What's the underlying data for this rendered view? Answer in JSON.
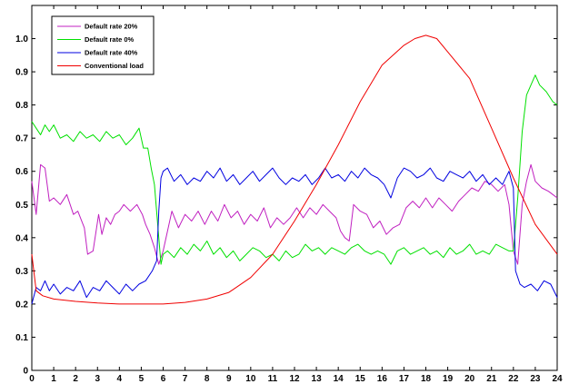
{
  "chart_data": {
    "type": "line",
    "title": "",
    "xlabel": "",
    "ylabel": "",
    "xlim": [
      0,
      24
    ],
    "ylim": [
      0,
      1.1
    ],
    "xticks": [
      0,
      1,
      2,
      3,
      4,
      5,
      6,
      7,
      8,
      9,
      10,
      11,
      12,
      13,
      14,
      15,
      16,
      17,
      18,
      19,
      20,
      21,
      22,
      23,
      24
    ],
    "yticks": [
      0,
      0.1,
      0.2,
      0.3,
      0.4,
      0.5,
      0.6,
      0.7,
      0.8,
      0.9,
      1.0
    ],
    "ytick_labels": [
      "0",
      "0.1",
      "0.2",
      "0.3",
      "0.4",
      "0.5",
      "0.6",
      "0.7",
      "0.8",
      "0.9",
      "1.0"
    ],
    "grid": false,
    "legend_position": "top-left",
    "series": [
      {
        "name": "Default rate 20%",
        "color": "#c020c0",
        "points": [
          [
            0,
            0.57
          ],
          [
            0.2,
            0.47
          ],
          [
            0.4,
            0.62
          ],
          [
            0.6,
            0.61
          ],
          [
            0.8,
            0.51
          ],
          [
            1,
            0.52
          ],
          [
            1.3,
            0.5
          ],
          [
            1.6,
            0.53
          ],
          [
            1.9,
            0.47
          ],
          [
            2.1,
            0.48
          ],
          [
            2.4,
            0.43
          ],
          [
            2.55,
            0.35
          ],
          [
            2.8,
            0.36
          ],
          [
            3.05,
            0.47
          ],
          [
            3.2,
            0.41
          ],
          [
            3.4,
            0.46
          ],
          [
            3.6,
            0.44
          ],
          [
            3.8,
            0.47
          ],
          [
            4.0,
            0.48
          ],
          [
            4.2,
            0.5
          ],
          [
            4.5,
            0.48
          ],
          [
            4.8,
            0.5
          ],
          [
            5.05,
            0.47
          ],
          [
            5.2,
            0.44
          ],
          [
            5.4,
            0.41
          ],
          [
            5.6,
            0.37
          ],
          [
            5.8,
            0.32
          ],
          [
            6.0,
            0.36
          ],
          [
            6.2,
            0.42
          ],
          [
            6.4,
            0.48
          ],
          [
            6.7,
            0.43
          ],
          [
            7.0,
            0.47
          ],
          [
            7.3,
            0.45
          ],
          [
            7.6,
            0.48
          ],
          [
            7.9,
            0.44
          ],
          [
            8.2,
            0.48
          ],
          [
            8.5,
            0.45
          ],
          [
            8.8,
            0.5
          ],
          [
            9.1,
            0.46
          ],
          [
            9.4,
            0.48
          ],
          [
            9.7,
            0.44
          ],
          [
            10.0,
            0.47
          ],
          [
            10.3,
            0.45
          ],
          [
            10.6,
            0.49
          ],
          [
            10.9,
            0.43
          ],
          [
            11.2,
            0.46
          ],
          [
            11.5,
            0.44
          ],
          [
            11.8,
            0.46
          ],
          [
            12.1,
            0.49
          ],
          [
            12.4,
            0.46
          ],
          [
            12.7,
            0.49
          ],
          [
            13.0,
            0.47
          ],
          [
            13.3,
            0.5
          ],
          [
            13.6,
            0.48
          ],
          [
            13.9,
            0.46
          ],
          [
            14.1,
            0.42
          ],
          [
            14.3,
            0.4
          ],
          [
            14.5,
            0.39
          ],
          [
            14.7,
            0.5
          ],
          [
            15.0,
            0.48
          ],
          [
            15.3,
            0.47
          ],
          [
            15.6,
            0.43
          ],
          [
            15.9,
            0.45
          ],
          [
            16.2,
            0.41
          ],
          [
            16.5,
            0.43
          ],
          [
            16.8,
            0.44
          ],
          [
            17.1,
            0.49
          ],
          [
            17.4,
            0.51
          ],
          [
            17.7,
            0.49
          ],
          [
            18.0,
            0.52
          ],
          [
            18.3,
            0.49
          ],
          [
            18.6,
            0.52
          ],
          [
            18.9,
            0.5
          ],
          [
            19.2,
            0.48
          ],
          [
            19.5,
            0.51
          ],
          [
            19.8,
            0.53
          ],
          [
            20.1,
            0.55
          ],
          [
            20.4,
            0.54
          ],
          [
            20.7,
            0.57
          ],
          [
            21.0,
            0.56
          ],
          [
            21.3,
            0.54
          ],
          [
            21.6,
            0.56
          ],
          [
            21.8,
            0.5
          ],
          [
            22.0,
            0.36
          ],
          [
            22.2,
            0.32
          ],
          [
            22.4,
            0.5
          ],
          [
            22.6,
            0.57
          ],
          [
            22.8,
            0.62
          ],
          [
            23.0,
            0.57
          ],
          [
            23.3,
            0.55
          ],
          [
            23.6,
            0.54
          ],
          [
            23.8,
            0.53
          ],
          [
            24.0,
            0.52
          ]
        ]
      },
      {
        "name": "Default rate 0%",
        "color": "#00e000",
        "points": [
          [
            0,
            0.75
          ],
          [
            0.2,
            0.73
          ],
          [
            0.4,
            0.71
          ],
          [
            0.6,
            0.74
          ],
          [
            0.8,
            0.72
          ],
          [
            1.0,
            0.74
          ],
          [
            1.3,
            0.7
          ],
          [
            1.6,
            0.71
          ],
          [
            1.9,
            0.69
          ],
          [
            2.2,
            0.72
          ],
          [
            2.5,
            0.7
          ],
          [
            2.8,
            0.71
          ],
          [
            3.1,
            0.69
          ],
          [
            3.4,
            0.72
          ],
          [
            3.7,
            0.7
          ],
          [
            4.0,
            0.71
          ],
          [
            4.3,
            0.68
          ],
          [
            4.6,
            0.7
          ],
          [
            4.9,
            0.73
          ],
          [
            5.1,
            0.67
          ],
          [
            5.3,
            0.67
          ],
          [
            5.45,
            0.61
          ],
          [
            5.6,
            0.56
          ],
          [
            5.75,
            0.44
          ],
          [
            5.9,
            0.32
          ],
          [
            6.0,
            0.35
          ],
          [
            6.2,
            0.36
          ],
          [
            6.5,
            0.34
          ],
          [
            6.8,
            0.37
          ],
          [
            7.1,
            0.35
          ],
          [
            7.4,
            0.38
          ],
          [
            7.7,
            0.36
          ],
          [
            8.0,
            0.39
          ],
          [
            8.3,
            0.35
          ],
          [
            8.6,
            0.37
          ],
          [
            8.9,
            0.34
          ],
          [
            9.2,
            0.36
          ],
          [
            9.5,
            0.33
          ],
          [
            9.8,
            0.35
          ],
          [
            10.1,
            0.37
          ],
          [
            10.4,
            0.36
          ],
          [
            10.7,
            0.34
          ],
          [
            11.0,
            0.35
          ],
          [
            11.3,
            0.33
          ],
          [
            11.6,
            0.36
          ],
          [
            11.9,
            0.34
          ],
          [
            12.2,
            0.35
          ],
          [
            12.5,
            0.38
          ],
          [
            12.8,
            0.36
          ],
          [
            13.1,
            0.37
          ],
          [
            13.4,
            0.35
          ],
          [
            13.7,
            0.37
          ],
          [
            14.0,
            0.36
          ],
          [
            14.3,
            0.35
          ],
          [
            14.6,
            0.37
          ],
          [
            14.9,
            0.38
          ],
          [
            15.2,
            0.36
          ],
          [
            15.5,
            0.35
          ],
          [
            15.8,
            0.36
          ],
          [
            16.1,
            0.35
          ],
          [
            16.4,
            0.32
          ],
          [
            16.7,
            0.36
          ],
          [
            17.0,
            0.37
          ],
          [
            17.3,
            0.35
          ],
          [
            17.6,
            0.36
          ],
          [
            17.9,
            0.37
          ],
          [
            18.2,
            0.35
          ],
          [
            18.5,
            0.36
          ],
          [
            18.8,
            0.34
          ],
          [
            19.1,
            0.37
          ],
          [
            19.4,
            0.35
          ],
          [
            19.7,
            0.36
          ],
          [
            20.0,
            0.38
          ],
          [
            20.3,
            0.35
          ],
          [
            20.6,
            0.36
          ],
          [
            20.9,
            0.35
          ],
          [
            21.2,
            0.38
          ],
          [
            21.5,
            0.37
          ],
          [
            21.8,
            0.36
          ],
          [
            22.0,
            0.36
          ],
          [
            22.2,
            0.52
          ],
          [
            22.4,
            0.72
          ],
          [
            22.6,
            0.83
          ],
          [
            22.8,
            0.86
          ],
          [
            23.0,
            0.89
          ],
          [
            23.2,
            0.86
          ],
          [
            23.5,
            0.84
          ],
          [
            23.8,
            0.81
          ],
          [
            24.0,
            0.8
          ]
        ]
      },
      {
        "name": "Default rate 40%",
        "color": "#0000e0",
        "points": [
          [
            0,
            0.2
          ],
          [
            0.2,
            0.25
          ],
          [
            0.4,
            0.24
          ],
          [
            0.6,
            0.27
          ],
          [
            0.8,
            0.24
          ],
          [
            1.0,
            0.26
          ],
          [
            1.3,
            0.23
          ],
          [
            1.6,
            0.25
          ],
          [
            1.9,
            0.24
          ],
          [
            2.2,
            0.27
          ],
          [
            2.5,
            0.22
          ],
          [
            2.8,
            0.25
          ],
          [
            3.1,
            0.24
          ],
          [
            3.4,
            0.27
          ],
          [
            3.7,
            0.25
          ],
          [
            4.0,
            0.23
          ],
          [
            4.3,
            0.26
          ],
          [
            4.6,
            0.24
          ],
          [
            4.9,
            0.26
          ],
          [
            5.2,
            0.27
          ],
          [
            5.5,
            0.3
          ],
          [
            5.7,
            0.33
          ],
          [
            5.8,
            0.48
          ],
          [
            5.9,
            0.58
          ],
          [
            6.0,
            0.6
          ],
          [
            6.2,
            0.61
          ],
          [
            6.5,
            0.57
          ],
          [
            6.8,
            0.59
          ],
          [
            7.1,
            0.56
          ],
          [
            7.4,
            0.58
          ],
          [
            7.7,
            0.57
          ],
          [
            8.0,
            0.6
          ],
          [
            8.3,
            0.58
          ],
          [
            8.6,
            0.61
          ],
          [
            8.9,
            0.57
          ],
          [
            9.2,
            0.59
          ],
          [
            9.5,
            0.56
          ],
          [
            9.8,
            0.58
          ],
          [
            10.1,
            0.6
          ],
          [
            10.4,
            0.57
          ],
          [
            10.7,
            0.59
          ],
          [
            11.0,
            0.61
          ],
          [
            11.3,
            0.58
          ],
          [
            11.6,
            0.56
          ],
          [
            11.9,
            0.58
          ],
          [
            12.2,
            0.57
          ],
          [
            12.5,
            0.59
          ],
          [
            12.8,
            0.56
          ],
          [
            13.1,
            0.58
          ],
          [
            13.4,
            0.61
          ],
          [
            13.7,
            0.58
          ],
          [
            14.0,
            0.59
          ],
          [
            14.3,
            0.57
          ],
          [
            14.6,
            0.6
          ],
          [
            14.9,
            0.58
          ],
          [
            15.2,
            0.61
          ],
          [
            15.5,
            0.59
          ],
          [
            15.8,
            0.58
          ],
          [
            16.1,
            0.56
          ],
          [
            16.4,
            0.52
          ],
          [
            16.7,
            0.58
          ],
          [
            17.0,
            0.61
          ],
          [
            17.3,
            0.6
          ],
          [
            17.6,
            0.58
          ],
          [
            17.9,
            0.59
          ],
          [
            18.2,
            0.61
          ],
          [
            18.5,
            0.58
          ],
          [
            18.8,
            0.57
          ],
          [
            19.1,
            0.6
          ],
          [
            19.4,
            0.59
          ],
          [
            19.7,
            0.58
          ],
          [
            20.0,
            0.6
          ],
          [
            20.3,
            0.57
          ],
          [
            20.6,
            0.59
          ],
          [
            20.9,
            0.56
          ],
          [
            21.2,
            0.58
          ],
          [
            21.5,
            0.56
          ],
          [
            21.8,
            0.6
          ],
          [
            22.0,
            0.55
          ],
          [
            22.1,
            0.3
          ],
          [
            22.3,
            0.26
          ],
          [
            22.5,
            0.25
          ],
          [
            22.8,
            0.26
          ],
          [
            23.1,
            0.24
          ],
          [
            23.4,
            0.27
          ],
          [
            23.7,
            0.26
          ],
          [
            24.0,
            0.22
          ]
        ]
      },
      {
        "name": "Conventional load",
        "color": "#f00000",
        "points": [
          [
            0,
            0.35
          ],
          [
            0.2,
            0.24
          ],
          [
            0.5,
            0.225
          ],
          [
            1,
            0.215
          ],
          [
            2,
            0.208
          ],
          [
            3,
            0.203
          ],
          [
            4,
            0.2
          ],
          [
            5,
            0.2
          ],
          [
            6,
            0.2
          ],
          [
            7,
            0.205
          ],
          [
            8,
            0.215
          ],
          [
            9,
            0.235
          ],
          [
            10,
            0.28
          ],
          [
            11,
            0.35
          ],
          [
            12,
            0.45
          ],
          [
            13,
            0.56
          ],
          [
            14,
            0.68
          ],
          [
            15,
            0.81
          ],
          [
            16,
            0.92
          ],
          [
            17,
            0.98
          ],
          [
            17.5,
            1.0
          ],
          [
            18,
            1.01
          ],
          [
            18.5,
            1.0
          ],
          [
            19,
            0.96
          ],
          [
            20,
            0.88
          ],
          [
            21,
            0.73
          ],
          [
            22,
            0.58
          ],
          [
            23,
            0.44
          ],
          [
            24,
            0.35
          ]
        ]
      }
    ]
  }
}
